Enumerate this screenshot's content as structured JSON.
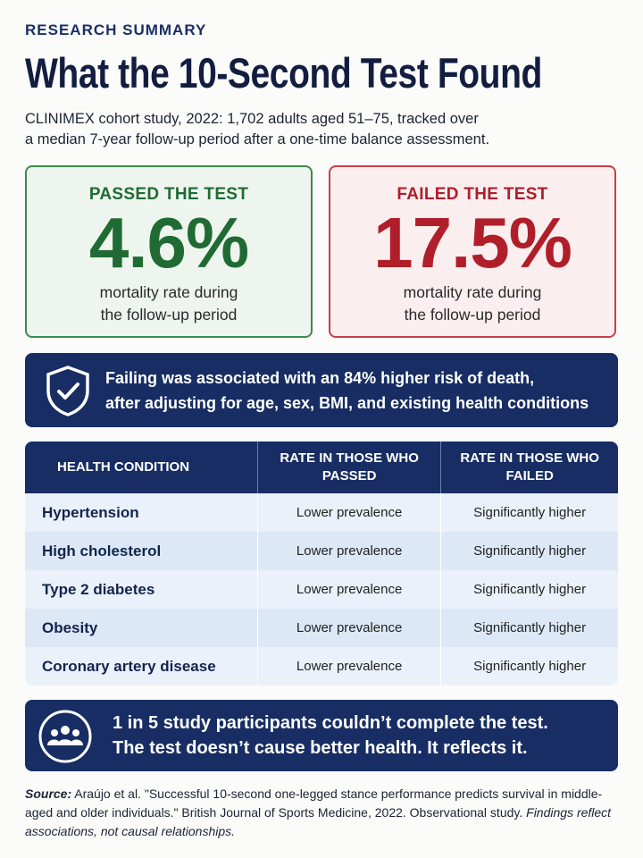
{
  "header": {
    "eyebrow": "RESEARCH SUMMARY",
    "title": "What the 10-Second Test Found",
    "subtitle_lines": [
      "CLINIMEX cohort study, 2022: 1,702 adults aged 51–75, tracked over",
      "a median 7-year follow-up period after a one-time balance assessment."
    ]
  },
  "cards": [
    {
      "heading": "PASSED THE TEST",
      "value": "4.6%",
      "caption_lines": [
        "mortality rate during",
        "the follow-up period"
      ]
    },
    {
      "heading": "FAILED THE TEST",
      "value": "17.5%",
      "caption_lines": [
        "mortality rate during",
        "the follow-up period"
      ]
    }
  ],
  "risk_banner": {
    "lines": [
      "Failing was associated with an 84% higher risk of death,",
      "after adjusting for age, sex, BMI, and existing health conditions"
    ]
  },
  "table": {
    "columns": [
      "HEALTH CONDITION",
      "RATE IN THOSE WHO PASSED",
      "RATE IN THOSE WHO FAILED"
    ],
    "rows": [
      [
        "Hypertension",
        "Lower prevalence",
        "Significantly higher"
      ],
      [
        "High cholesterol",
        "Lower prevalence",
        "Significantly higher"
      ],
      [
        "Type 2 diabetes",
        "Lower prevalence",
        "Significantly higher"
      ],
      [
        "Obesity",
        "Lower prevalence",
        "Significantly higher"
      ],
      [
        "Coronary artery disease",
        "Lower prevalence",
        "Significantly higher"
      ]
    ]
  },
  "participants_banner": {
    "lines": [
      "1 in 5 study participants couldn’t complete the test.",
      "The test doesn’t cause better health. It reflects it."
    ]
  },
  "source": {
    "label": "Source:",
    "text": "Araújo et al. \"Successful 10-second one-legged stance performance predicts survival in middle-aged and older individuals.\" British Journal of Sports Medicine, 2022. Observational study.",
    "note": "Findings reflect associations, not causal relationships."
  }
}
